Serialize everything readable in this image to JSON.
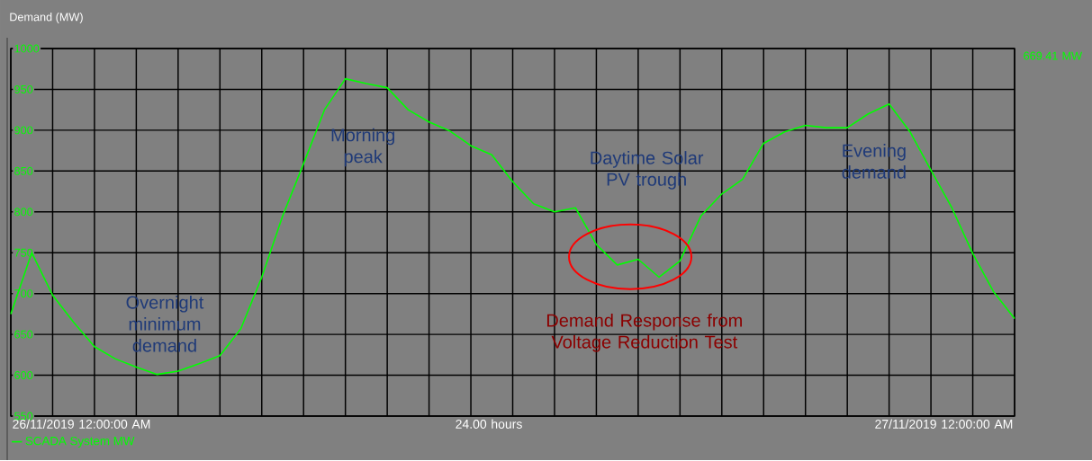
{
  "chart_data": {
    "type": "line",
    "title": "Demand (MW)",
    "categories": [
      null,
      null,
      null,
      null,
      null,
      null,
      null,
      null,
      null,
      null,
      null,
      null,
      null,
      null,
      null,
      null,
      null,
      null,
      null,
      null,
      null,
      null,
      null,
      null,
      null,
      null,
      null,
      null,
      null,
      null,
      null,
      null,
      null,
      null,
      null,
      null,
      null,
      null,
      null,
      null,
      null,
      null,
      null,
      null,
      null,
      null,
      null,
      null,
      null
    ],
    "series": [
      {
        "name": "SCADA System MW",
        "color": "#00ff00",
        "values": [
          675,
          750,
          698,
          665,
          635,
          620,
          610,
          601,
          605,
          614,
          624,
          657,
          720,
          795,
          859,
          925,
          963,
          957,
          952,
          925,
          910,
          899,
          881,
          870,
          837,
          810,
          800,
          805,
          760,
          735,
          742,
          720,
          740,
          795,
          822,
          840,
          884,
          898,
          906,
          903,
          903,
          920,
          932,
          898,
          851,
          805,
          749,
          702,
          669.41
        ]
      }
    ],
    "ylim": [
      550,
      1000
    ],
    "yticks": [
      550,
      600,
      650,
      700,
      750,
      800,
      850,
      900,
      950,
      1000
    ],
    "tick_labels": "y",
    "grid": true,
    "legend": "bottom left",
    "marker": "none",
    "line_style": "solid",
    "annotations": [
      "Overnight minimum demand",
      "Morning peak",
      "Daytime Solar PV trough",
      "Evening demand",
      "Demand Response from Voltage Reduction Test",
      "669.41 MW",
      "24.00 hours",
      "26/11/2019 12:00:00 AM",
      "27/11/2019 12:00:00 AM"
    ]
  }
}
